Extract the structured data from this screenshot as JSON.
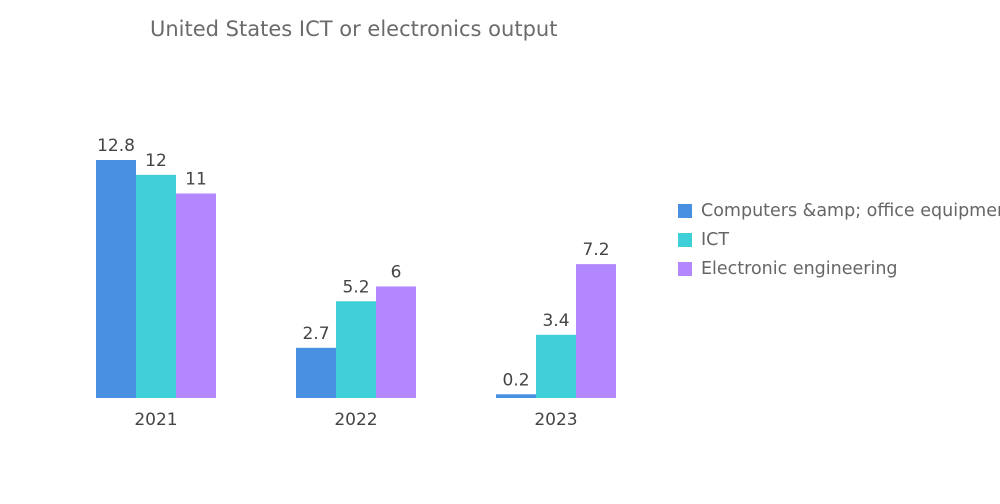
{
  "chart_data": {
    "type": "bar",
    "title": "United States ICT or electronics output",
    "categories": [
      "2021",
      "2022",
      "2023"
    ],
    "series": [
      {
        "name": "Computers &amp; office equipment",
        "color": "#4a90e2",
        "values": [
          12.8,
          2.7,
          0.2
        ]
      },
      {
        "name": "ICT",
        "color": "#3ecfd8",
        "values": [
          12,
          5.2,
          3.4
        ]
      },
      {
        "name": "Electronic engineering",
        "color": "#b388ff",
        "values": [
          11,
          6,
          7.2
        ]
      }
    ],
    "ylim": [
      0,
      12.8
    ],
    "grid": false,
    "legend": "right"
  }
}
